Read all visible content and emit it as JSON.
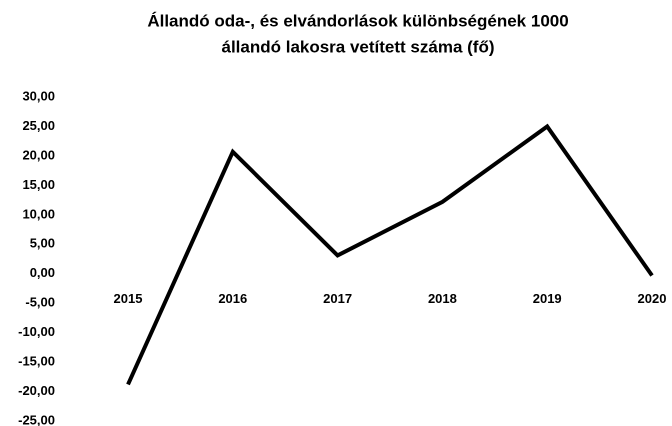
{
  "chart_data": {
    "type": "line",
    "title": [
      "Állandó oda-, és elvándorlások különbségének 1000",
      "állandó lakosra vetített száma (fő)"
    ],
    "categories": [
      "2015",
      "2016",
      "2017",
      "2018",
      "2019",
      "2020"
    ],
    "series": [
      {
        "name": null,
        "color": "#000000",
        "values": [
          -18.8,
          20.7,
          3.1,
          12.2,
          25.0,
          -0.3
        ]
      }
    ],
    "ylim": [
      -25,
      30
    ],
    "yticks": [
      {
        "value": 30,
        "label": "30,00"
      },
      {
        "value": 25,
        "label": "25,00"
      },
      {
        "value": 20,
        "label": "20,00"
      },
      {
        "value": 15,
        "label": "15,00"
      },
      {
        "value": 10,
        "label": "10,00"
      },
      {
        "value": 5,
        "label": "5,00"
      },
      {
        "value": 0,
        "label": "0,00"
      },
      {
        "value": -5,
        "label": "-5,00"
      },
      {
        "value": -10,
        "label": "-10,00"
      },
      {
        "value": -15,
        "label": "-15,00"
      },
      {
        "value": -20,
        "label": "-20,00"
      },
      {
        "value": -25,
        "label": "-25,00"
      }
    ],
    "grid": false
  }
}
